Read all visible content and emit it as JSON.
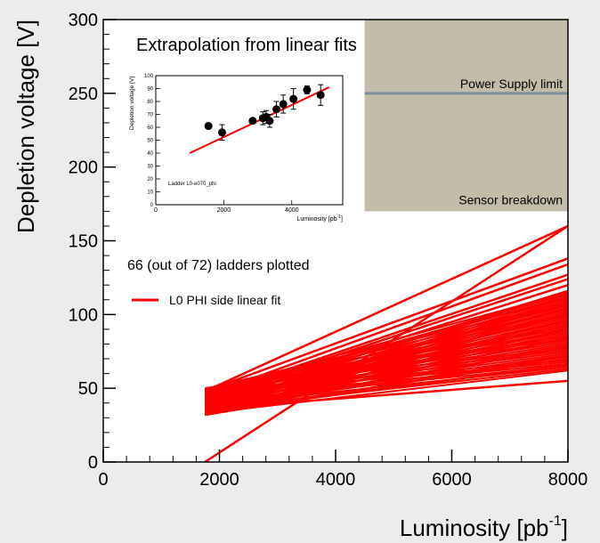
{
  "chart_data": {
    "type": "line",
    "title": "Extrapolation from linear fits",
    "xlabel": "Luminosity [pb",
    "xlabel_sup": "-1",
    "xlabel_close": "]",
    "ylabel": "Depletion voltage [V]",
    "xlim": [
      0,
      8000
    ],
    "ylim": [
      0,
      300
    ],
    "x_ticks": [
      "0",
      "2000",
      "4000",
      "6000",
      "8000"
    ],
    "y_ticks": [
      "0",
      "50",
      "100",
      "150",
      "200",
      "250",
      "300"
    ],
    "annotation": "66 (out of 72) ladders plotted",
    "legend": {
      "label": "L0 PHI side linear fit",
      "color": "#ff0000",
      "placement": "left-middle"
    },
    "region": {
      "y0": 170,
      "y1": 300,
      "x0": 4500,
      "x1": 8000,
      "color": "#c2bca8",
      "top_label": "Power Supply limit",
      "bottom_label": "Sensor breakdown",
      "limit_line": {
        "y": 250,
        "color": "#7a90a0"
      }
    },
    "fits": {
      "x_start": 1750,
      "x_end": 8000,
      "highlighted": [
        {
          "y0": 0,
          "y1": 160
        },
        {
          "y0": 48,
          "y1": 160
        },
        {
          "y0": 48,
          "y1": 138
        },
        {
          "y0": 45,
          "y1": 134
        },
        {
          "y0": 44,
          "y1": 127
        },
        {
          "y0": 43,
          "y1": 124
        },
        {
          "y0": 42,
          "y1": 120
        },
        {
          "y0": 40,
          "y1": 116
        },
        {
          "y0": 46,
          "y1": 112
        },
        {
          "y0": 39,
          "y1": 107
        },
        {
          "y0": 38,
          "y1": 104
        },
        {
          "y0": 37,
          "y1": 100
        },
        {
          "y0": 36,
          "y1": 96
        },
        {
          "y0": 35,
          "y1": 90
        },
        {
          "y0": 34,
          "y1": 84
        },
        {
          "y0": 33,
          "y1": 78
        },
        {
          "y0": 32,
          "y1": 72
        },
        {
          "y0": 34,
          "y1": 66
        },
        {
          "y0": 36,
          "y1": 55
        }
      ],
      "band": {
        "y0_range": [
          33,
          50
        ],
        "y1_range": [
          62,
          115
        ],
        "count": 47
      }
    },
    "inset": {
      "type": "scatter",
      "xlabel": "Luminosity [pb",
      "xlabel_sup": "-1",
      "xlabel_close": "]",
      "ylabel": "Depletion voltage [V]",
      "label": "Ladder L0-e070_phi",
      "xlim": [
        0,
        5500
      ],
      "ylim": [
        0,
        100
      ],
      "x_ticks": [
        "0",
        "2000",
        "4000"
      ],
      "y_ticks": [
        "0",
        "10",
        "20",
        "30",
        "40",
        "50",
        "60",
        "70",
        "80",
        "90",
        "100"
      ],
      "points": [
        {
          "x": 1550,
          "y": 61,
          "err": 2
        },
        {
          "x": 1950,
          "y": 56,
          "err": 6
        },
        {
          "x": 2850,
          "y": 65,
          "err": 2
        },
        {
          "x": 3150,
          "y": 67,
          "err": 5
        },
        {
          "x": 3250,
          "y": 68,
          "err": 5
        },
        {
          "x": 3350,
          "y": 65,
          "err": 5
        },
        {
          "x": 3550,
          "y": 74,
          "err": 6
        },
        {
          "x": 3750,
          "y": 78,
          "err": 7
        },
        {
          "x": 4050,
          "y": 82,
          "err": 8
        },
        {
          "x": 4450,
          "y": 89,
          "err": 3
        },
        {
          "x": 4850,
          "y": 85,
          "err": 8
        }
      ],
      "fit": {
        "x0": 1000,
        "y0": 40,
        "x1": 5100,
        "y1": 91,
        "color": "#ff0000"
      }
    }
  }
}
